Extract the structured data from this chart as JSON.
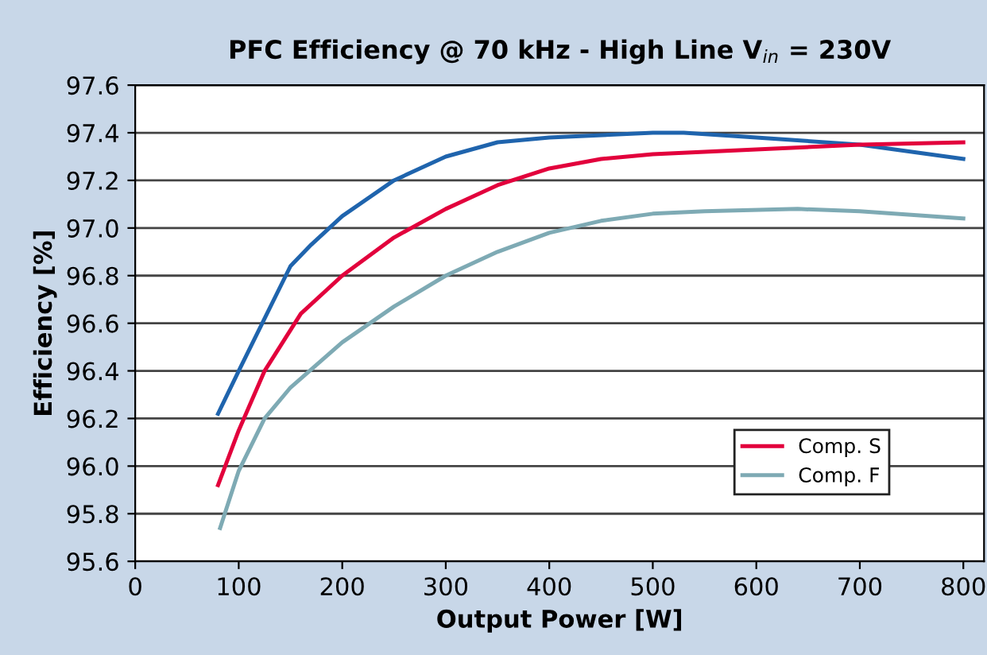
{
  "chart_data": {
    "type": "line",
    "title": "PFC Efficiency @ 70 kHz - High Line V$_{in}$ = 230V",
    "xlabel": "Output Power [W]",
    "ylabel": "Efficiency [%]",
    "xlim": [
      0,
      820
    ],
    "xticks": [
      0,
      100,
      200,
      300,
      400,
      500,
      600,
      700,
      800
    ],
    "ylim": [
      95.6,
      97.6
    ],
    "yticks": [
      {
        "value": 95.6,
        "label": "95.6"
      },
      {
        "value": 95.8,
        "label": "95.8"
      },
      {
        "value": 96.0,
        "label": "96.0"
      },
      {
        "value": 96.2,
        "label": "96.2"
      },
      {
        "value": 96.4,
        "label": "96.4"
      },
      {
        "value": 96.6,
        "label": "96.6"
      },
      {
        "value": 96.8,
        "label": "96.8"
      },
      {
        "value": 97.0,
        "label": "97.0"
      },
      {
        "value": 97.2,
        "label": "97.2"
      },
      {
        "value": 97.4,
        "label": "97.4"
      },
      {
        "value": 97.6,
        "label": "97.6"
      }
    ],
    "grid": "y",
    "legend": "bottom right",
    "series": [
      {
        "color": "#1f64ad",
        "x": [
          80,
          100,
          125,
          150,
          170,
          200,
          250,
          300,
          350,
          400,
          500,
          530,
          600,
          700,
          800
        ],
        "values": [
          96.22,
          96.4,
          96.62,
          96.84,
          96.93,
          97.05,
          97.2,
          97.3,
          97.36,
          97.38,
          97.4,
          97.4,
          97.38,
          97.35,
          97.29
        ]
      },
      {
        "name": "Comp. S",
        "color": "#e2003c",
        "x": [
          80,
          100,
          125,
          160,
          200,
          250,
          300,
          350,
          400,
          450,
          500,
          600,
          700,
          800
        ],
        "values": [
          95.92,
          96.15,
          96.4,
          96.64,
          96.8,
          96.96,
          97.08,
          97.18,
          97.25,
          97.29,
          97.31,
          97.33,
          97.35,
          97.36
        ]
      },
      {
        "name": "Comp. F",
        "color": "#7eaab4",
        "x": [
          82,
          100,
          125,
          150,
          200,
          250,
          300,
          350,
          400,
          450,
          500,
          550,
          640,
          700,
          800
        ],
        "values": [
          95.74,
          95.98,
          96.2,
          96.33,
          96.52,
          96.67,
          96.8,
          96.9,
          96.98,
          97.03,
          97.06,
          97.07,
          97.08,
          97.07,
          97.04
        ]
      }
    ]
  }
}
